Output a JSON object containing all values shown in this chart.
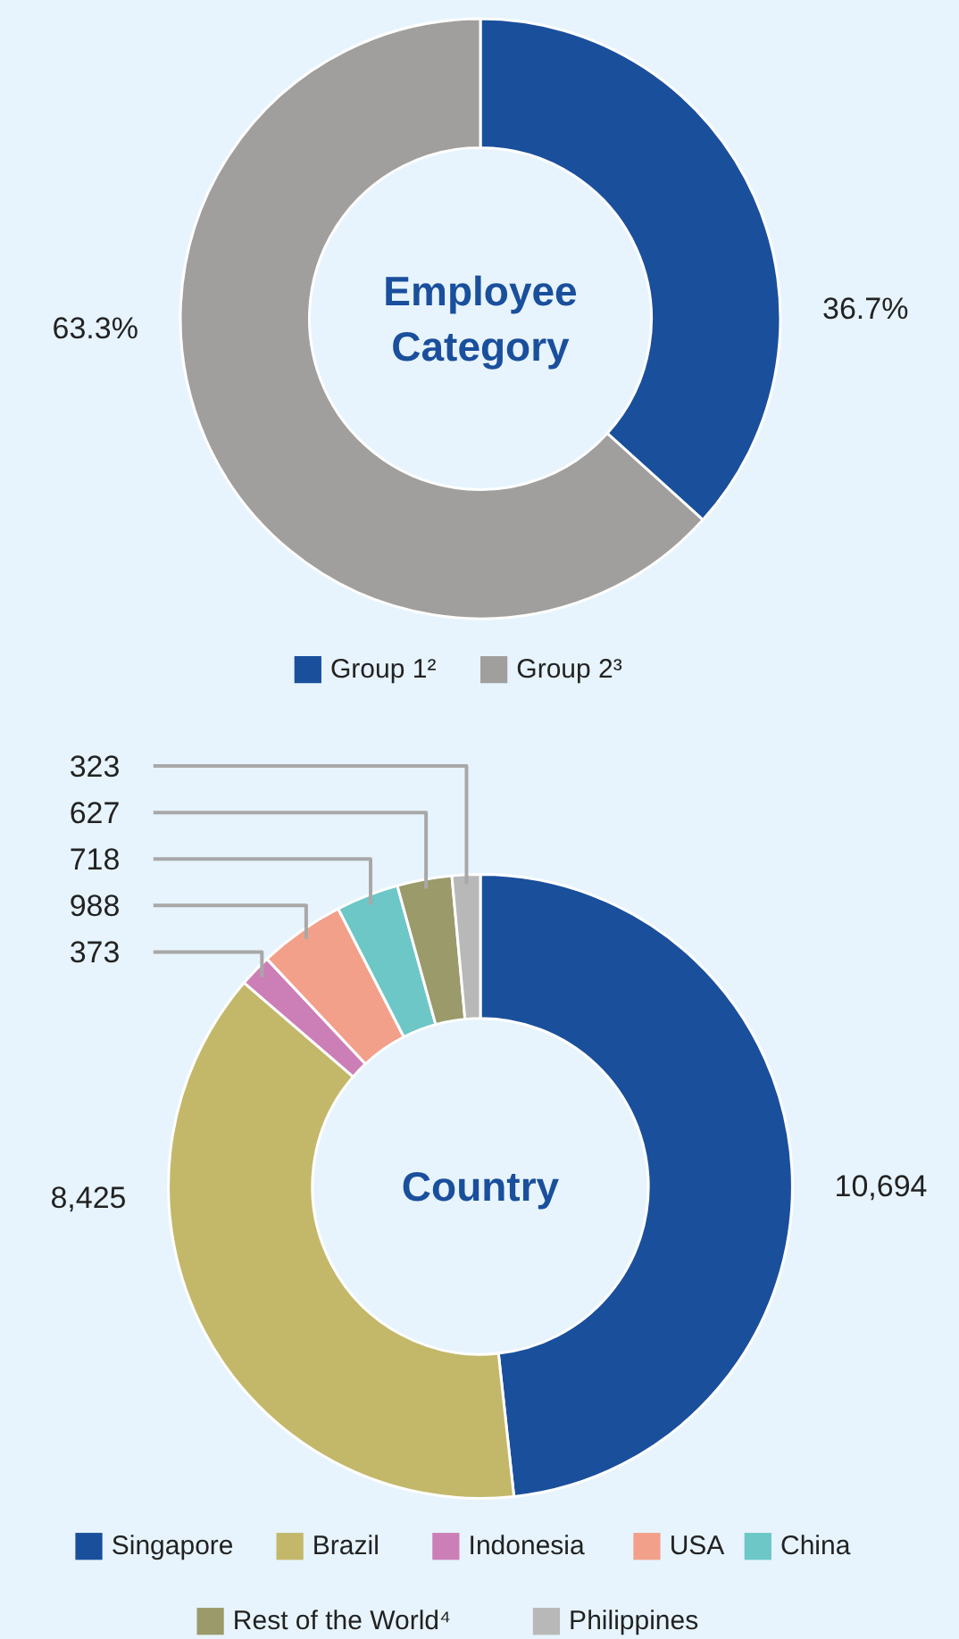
{
  "chart_data": [
    {
      "type": "donut",
      "title": "Employee Category",
      "categories": [
        "Group 1²",
        "Group 2³"
      ],
      "values": [
        36.7,
        63.3
      ],
      "colors": [
        "#1a4f9c",
        "#a09f9e"
      ],
      "value_labels": [
        "36.7%",
        "63.3%"
      ],
      "legend": "bottom"
    },
    {
      "type": "donut",
      "title": "Country",
      "categories": [
        "Singapore",
        "Brazil",
        "Indonesia",
        "USA",
        "China",
        "Rest of the World⁴",
        "Philippines"
      ],
      "values": [
        10694,
        8425,
        373,
        988,
        718,
        627,
        323
      ],
      "colors": [
        "#1a4f9c",
        "#c3b86a",
        "#cc7fb6",
        "#f2a08a",
        "#6cc7c6",
        "#9a9a6a",
        "#b8b8b8"
      ],
      "value_labels": [
        "10,694",
        "8,425",
        "373",
        "988",
        "718",
        "627",
        "323"
      ],
      "legend": "bottom"
    }
  ]
}
